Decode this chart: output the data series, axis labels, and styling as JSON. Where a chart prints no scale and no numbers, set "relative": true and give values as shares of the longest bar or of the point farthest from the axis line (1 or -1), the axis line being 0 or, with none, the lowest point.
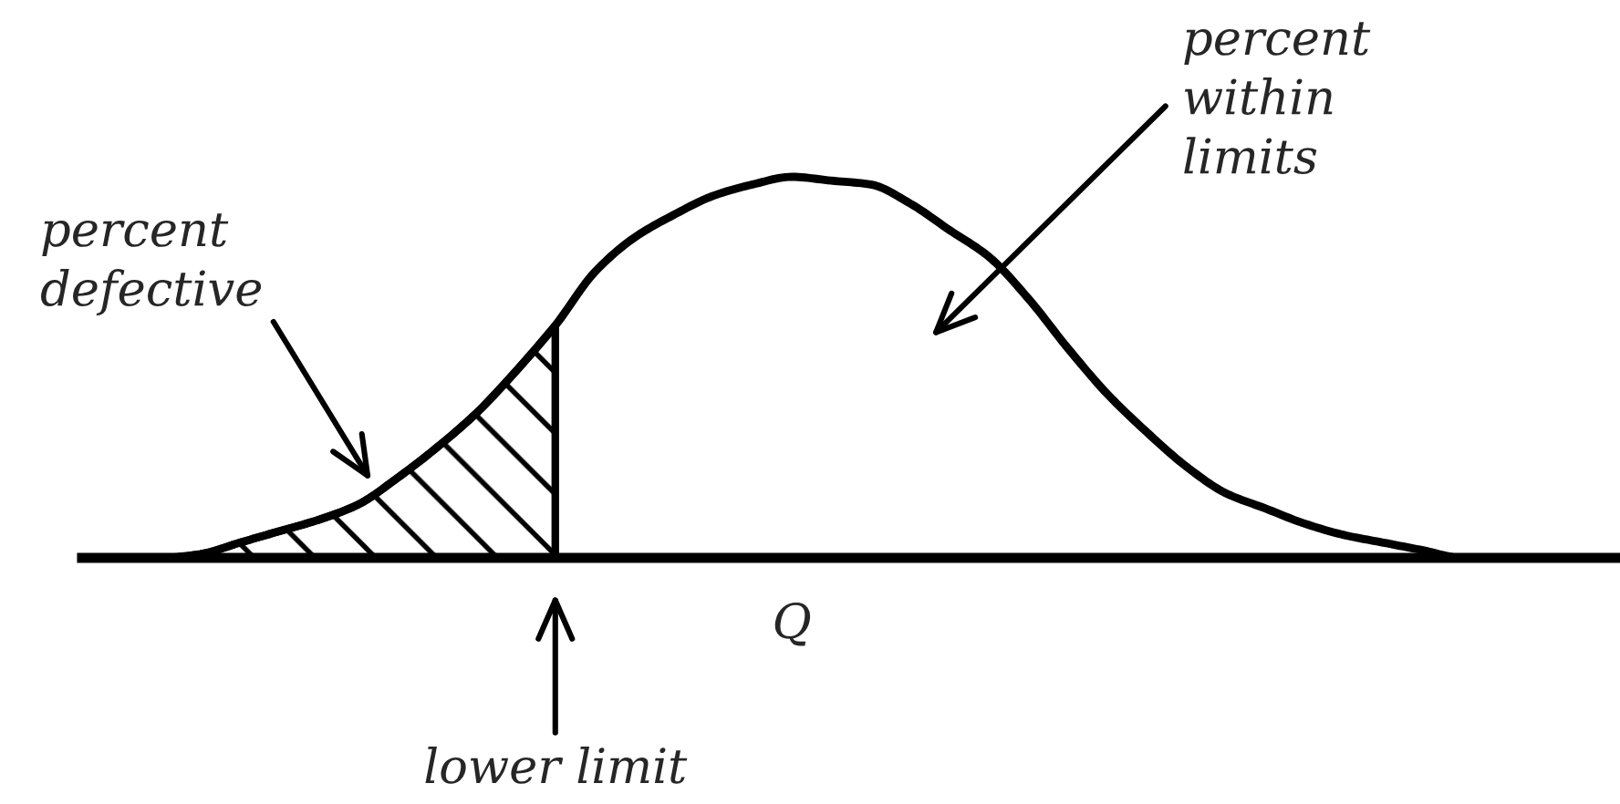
{
  "chart_data": {
    "type": "line",
    "relative": true,
    "xlabel": "Q",
    "categories": [
      null,
      null,
      null,
      null,
      null,
      null,
      null,
      null,
      null,
      null,
      null,
      null,
      null,
      null,
      null,
      null,
      null,
      null,
      null,
      null,
      null,
      null,
      null,
      null,
      null,
      null,
      null,
      null,
      null,
      null,
      null,
      null,
      null,
      null,
      null,
      null,
      null,
      null,
      null,
      null
    ],
    "series": [
      {
        "color": "#000000",
        "values": [
          0,
          0,
          0,
          0.01,
          0.04,
          0.07,
          0.1,
          0.14,
          0.21,
          0.29,
          0.38,
          0.49,
          0.61,
          0.75,
          0.84,
          0.9,
          0.95,
          0.98,
          1,
          0.99,
          0.98,
          0.93,
          0.86,
          0.79,
          0.68,
          0.55,
          0.43,
          0.33,
          0.24,
          0.17,
          0.13,
          0.09,
          0.06,
          0.04,
          0.02,
          0,
          0,
          0,
          0,
          0
        ]
      },
      {
        "type": "area",
        "color": "#000000",
        "values": [
          0,
          0,
          0,
          0.01,
          0.04,
          0.07,
          0.1,
          0.14,
          0.21,
          0.29,
          0.38,
          0.49,
          0.61,
          null,
          null,
          null,
          null,
          null,
          null,
          null,
          null,
          null,
          null,
          null,
          null,
          null,
          null,
          null,
          null,
          null,
          null,
          null,
          null,
          null,
          null,
          null,
          null,
          null,
          null,
          null
        ]
      }
    ],
    "annotations": [
      "percent\ndefective",
      "percent\nwithin\nlimits",
      "lower limit"
    ]
  }
}
